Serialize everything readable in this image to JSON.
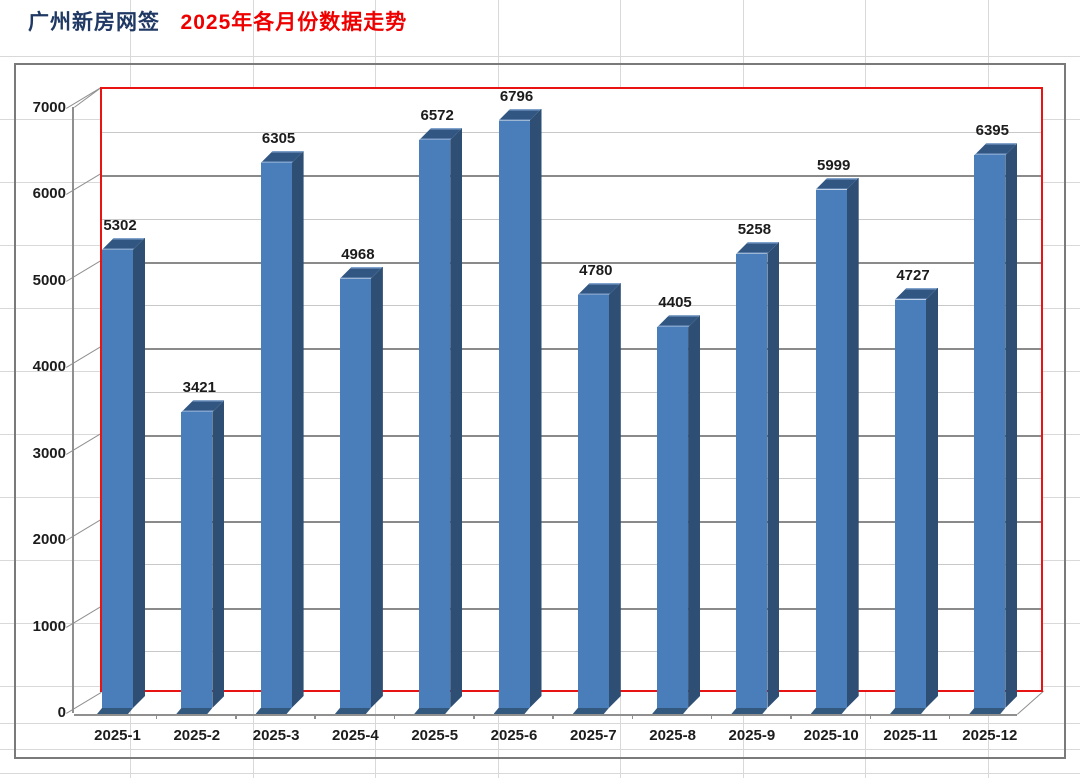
{
  "title": {
    "part1": "广州新房网签",
    "part2": "2025年各月份数据走势",
    "part1_color": "#1F3864",
    "part2_color": "#EE0000"
  },
  "colors": {
    "bar_front": "#4A7EBB",
    "bar_side": "#2E4E74",
    "bar_top": "#315682",
    "bar_top_edge": "#7FA3CC",
    "bar_bottom": "#33587E",
    "wall_border_red": "#E81414",
    "major_gridline": "#8a8a8a",
    "minor_gridline": "#c8c8c8",
    "axis_line": "#8f8f8f",
    "frame_border": "#7a7a7a",
    "sheet_gridline": "#d9d9d9",
    "label_text": "#1c1c1c"
  },
  "chart_data": {
    "type": "bar",
    "style": "3d-column",
    "title": "广州新房网签 2025年各月份数据走势",
    "categories": [
      "2025-1",
      "2025-2",
      "2025-3",
      "2025-4",
      "2025-5",
      "2025-6",
      "2025-7",
      "2025-8",
      "2025-9",
      "2025-10",
      "2025-11",
      "2025-12"
    ],
    "values": [
      5302,
      3421,
      6305,
      4968,
      6572,
      6796,
      4780,
      4405,
      5258,
      5999,
      4727,
      6395
    ],
    "series_name": "",
    "xlabel": "",
    "ylabel": "",
    "ylim": [
      0,
      7000
    ],
    "ytick_step": 1000,
    "minor_gridline_step": 500,
    "ytick_labels": [
      "0",
      "1000",
      "2000",
      "3000",
      "4000",
      "5000",
      "6000",
      "7000"
    ],
    "grid": true,
    "legend": "none",
    "data_labels": true
  }
}
